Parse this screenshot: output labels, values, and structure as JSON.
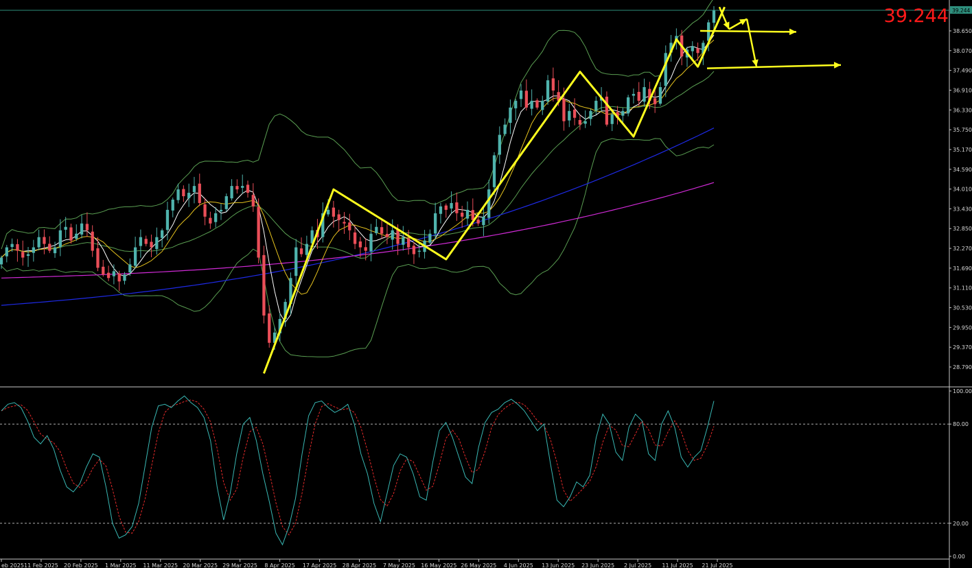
{
  "chart_data": [
    {
      "type": "candlestick",
      "symbol_price_label": "39.244",
      "current_price": 39.244,
      "price_axis_ticks": [
        "39.244",
        "38.650",
        "38.070",
        "37.490",
        "36.910",
        "36.330",
        "35.750",
        "35.170",
        "34.590",
        "34.010",
        "33.430",
        "32.850",
        "32.270",
        "31.690",
        "31.110",
        "30.530",
        "29.950",
        "29.370",
        "28.790"
      ],
      "x_tick_labels": [
        "eb 2025",
        "11 Feb 2025",
        "20 Feb 2025",
        "1 Mar 2025",
        "11 Mar 2025",
        "20 Mar 2025",
        "29 Mar 2025",
        "8 Apr 2025",
        "17 Apr 2025",
        "28 Apr 2025",
        "7 May 2025",
        "16 May 2025",
        "26 May 2025",
        "4 Jun 2025",
        "13 Jun 2025",
        "23 Jun 2025",
        "2 Jul 2025",
        "11 Jul 2025",
        "21 Jul 2025"
      ],
      "closes": [
        32.0,
        32.3,
        32.4,
        32.2,
        32.0,
        32.1,
        32.3,
        32.6,
        32.4,
        32.2,
        32.3,
        32.8,
        32.9,
        32.5,
        32.7,
        33.0,
        32.8,
        32.2,
        31.7,
        31.5,
        31.4,
        31.6,
        31.3,
        31.5,
        31.8,
        32.3,
        32.6,
        32.4,
        32.3,
        32.6,
        32.8,
        33.4,
        33.7,
        34.0,
        33.8,
        33.9,
        34.1,
        33.6,
        33.2,
        33.0,
        33.3,
        33.4,
        33.8,
        34.1,
        34.0,
        34.1,
        33.9,
        33.5,
        32.0,
        30.3,
        29.5,
        29.8,
        30.2,
        30.7,
        31.4,
        32.3,
        32.1,
        32.4,
        32.8,
        32.6,
        33.3,
        33.4,
        33.2,
        33.1,
        33.0,
        32.8,
        32.4,
        32.3,
        32.2,
        32.7,
        32.9,
        32.7,
        32.6,
        32.8,
        32.4,
        32.6,
        32.3,
        32.1,
        32.2,
        32.5,
        32.7,
        33.3,
        33.5,
        33.4,
        33.6,
        33.3,
        33.2,
        33.4,
        33.1,
        33.0,
        33.2,
        34.0,
        35.0,
        35.6,
        35.9,
        36.4,
        36.6,
        36.9,
        36.4,
        36.6,
        36.4,
        36.6,
        37.2,
        36.9,
        36.6,
        36.0,
        36.3,
        36.1,
        35.9,
        36.0,
        36.3,
        36.6,
        36.7,
        35.9,
        36.2,
        36.1,
        36.3,
        36.7,
        36.8,
        36.6,
        37.0,
        36.6,
        36.5,
        37.0,
        38.0,
        38.3,
        38.5,
        37.9,
        38.1,
        38.2,
        38.0,
        38.3,
        38.9,
        39.244
      ],
      "indicators": [
        {
          "name": "Bollinger Bands",
          "color": "#5a9e52"
        },
        {
          "name": "Fast MA",
          "color": "#ffffff"
        },
        {
          "name": "Slow MA",
          "color": "#e6c31e"
        },
        {
          "name": "MA 100",
          "color": "#1e2ae6"
        },
        {
          "name": "MA 200",
          "color": "#d02ad6"
        }
      ],
      "annotations": {
        "color": "#ffff1e",
        "description": "hand-drawn yellow zigzag projections"
      },
      "colors": {
        "bull": "#4fb3ad",
        "bear": "#ea4e58",
        "background": "#000000",
        "price_line": "#2e8f7d",
        "price_text": "#ff1a1a"
      }
    },
    {
      "type": "line",
      "name": "Stochastic",
      "ylim": [
        0,
        100
      ],
      "levels": [
        20,
        80
      ],
      "level_labels": [
        "100.00",
        "80.00",
        "20.00",
        "0.00"
      ],
      "k": [
        88,
        92,
        93,
        90,
        82,
        72,
        68,
        73,
        65,
        52,
        42,
        39,
        44,
        54,
        62,
        60,
        42,
        20,
        11,
        13,
        18,
        32,
        55,
        78,
        91,
        92,
        90,
        94,
        97,
        93,
        90,
        84,
        70,
        42,
        22,
        38,
        62,
        80,
        84,
        70,
        50,
        33,
        14,
        7,
        18,
        35,
        62,
        85,
        93,
        94,
        90,
        87,
        89,
        92,
        80,
        62,
        50,
        32,
        21,
        38,
        55,
        62,
        60,
        50,
        36,
        34,
        57,
        76,
        81,
        72,
        60,
        48,
        44,
        66,
        81,
        87,
        89,
        93,
        95,
        92,
        88,
        82,
        76,
        80,
        56,
        34,
        30,
        36,
        45,
        42,
        49,
        72,
        86,
        80,
        63,
        58,
        78,
        86,
        82,
        62,
        58,
        80,
        88,
        78,
        60,
        54,
        60,
        64,
        78,
        94
      ]
    }
  ]
}
